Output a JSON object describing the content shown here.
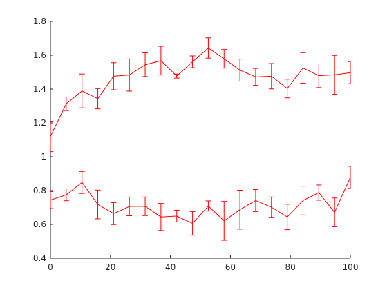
{
  "chart_data": {
    "type": "line",
    "title": "",
    "xlabel": "",
    "ylabel": "",
    "xlim": [
      0,
      100
    ],
    "ylim": [
      0.4,
      1.8
    ],
    "xticks": [
      0,
      20,
      40,
      60,
      80,
      100
    ],
    "xtick_labels": [
      "0",
      "20",
      "40",
      "60",
      "80",
      "100"
    ],
    "yticks": [
      0.4,
      0.6,
      0.8,
      1.0,
      1.2,
      1.4,
      1.6,
      1.8
    ],
    "ytick_labels": [
      "0.4",
      "0.6",
      "0.8",
      "1",
      "1.2",
      "1.4",
      "1.6",
      "1.8"
    ],
    "grid": false,
    "box": false,
    "error_bars": true,
    "x": [
      0,
      5.26,
      10.53,
      15.79,
      21.05,
      26.32,
      31.58,
      36.84,
      42.11,
      47.37,
      52.63,
      57.89,
      63.16,
      68.42,
      73.68,
      78.95,
      84.21,
      89.47,
      94.74,
      100
    ],
    "series": [
      {
        "color": "#ff0000",
        "values": [
          1.12,
          1.313,
          1.389,
          1.343,
          1.476,
          1.483,
          1.544,
          1.568,
          1.477,
          1.561,
          1.643,
          1.579,
          1.512,
          1.472,
          1.476,
          1.403,
          1.525,
          1.479,
          1.484,
          1.497
        ],
        "errors": [
          0.09,
          0.04,
          0.1,
          0.06,
          0.08,
          0.095,
          0.07,
          0.085,
          0.012,
          0.035,
          0.06,
          0.055,
          0.065,
          0.05,
          0.075,
          0.055,
          0.09,
          0.07,
          0.115,
          0.065
        ]
      },
      {
        "color": "#ff0000",
        "values": [
          0.744,
          0.775,
          0.848,
          0.718,
          0.664,
          0.706,
          0.707,
          0.644,
          0.649,
          0.606,
          0.709,
          0.621,
          0.687,
          0.741,
          0.702,
          0.644,
          0.741,
          0.788,
          0.671,
          0.878
        ],
        "errors": [
          0.05,
          0.035,
          0.065,
          0.085,
          0.065,
          0.055,
          0.055,
          0.08,
          0.035,
          0.07,
          0.03,
          0.115,
          0.115,
          0.065,
          0.06,
          0.075,
          0.085,
          0.045,
          0.085,
          0.065
        ]
      }
    ]
  }
}
